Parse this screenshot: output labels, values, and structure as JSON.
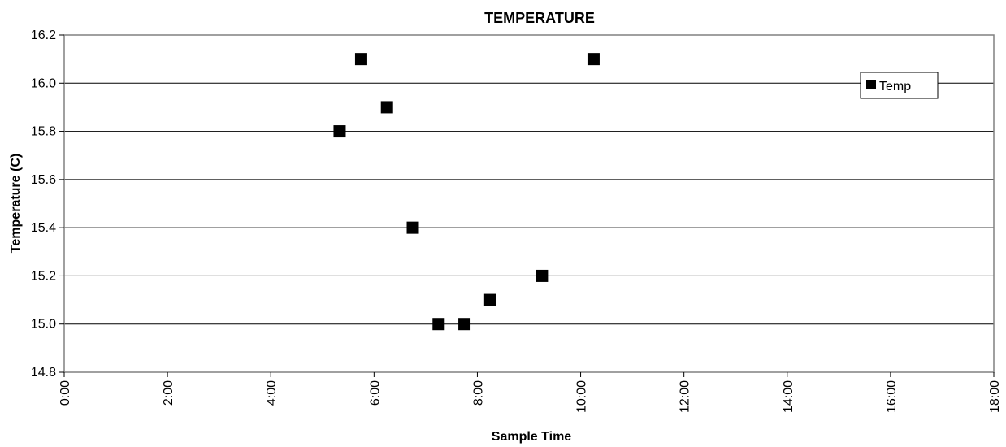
{
  "chart_data": {
    "type": "scatter",
    "title": "TEMPERATURE",
    "xlabel": "Sample Time",
    "ylabel": "Temperature (C)",
    "x_ticks": [
      "0:00",
      "2:00",
      "4:00",
      "6:00",
      "8:00",
      "10:00",
      "12:00",
      "14:00",
      "16:00",
      "18:00"
    ],
    "y_ticks": [
      "14.8",
      "15.0",
      "15.2",
      "15.4",
      "15.6",
      "15.8",
      "16.0",
      "16.2"
    ],
    "xlim": [
      "0:00",
      "18:00"
    ],
    "ylim": [
      14.8,
      16.2
    ],
    "grid": "horizontal",
    "legend_position": "top-right",
    "series": [
      {
        "name": "Temp",
        "color": "#000000",
        "marker": "square",
        "x": [
          "5:20",
          "5:45",
          "6:15",
          "6:45",
          "7:15",
          "7:45",
          "8:15",
          "9:15",
          "10:15"
        ],
        "y": [
          15.8,
          16.1,
          15.9,
          15.4,
          15.0,
          15.0,
          15.1,
          15.2,
          16.1
        ]
      }
    ]
  }
}
